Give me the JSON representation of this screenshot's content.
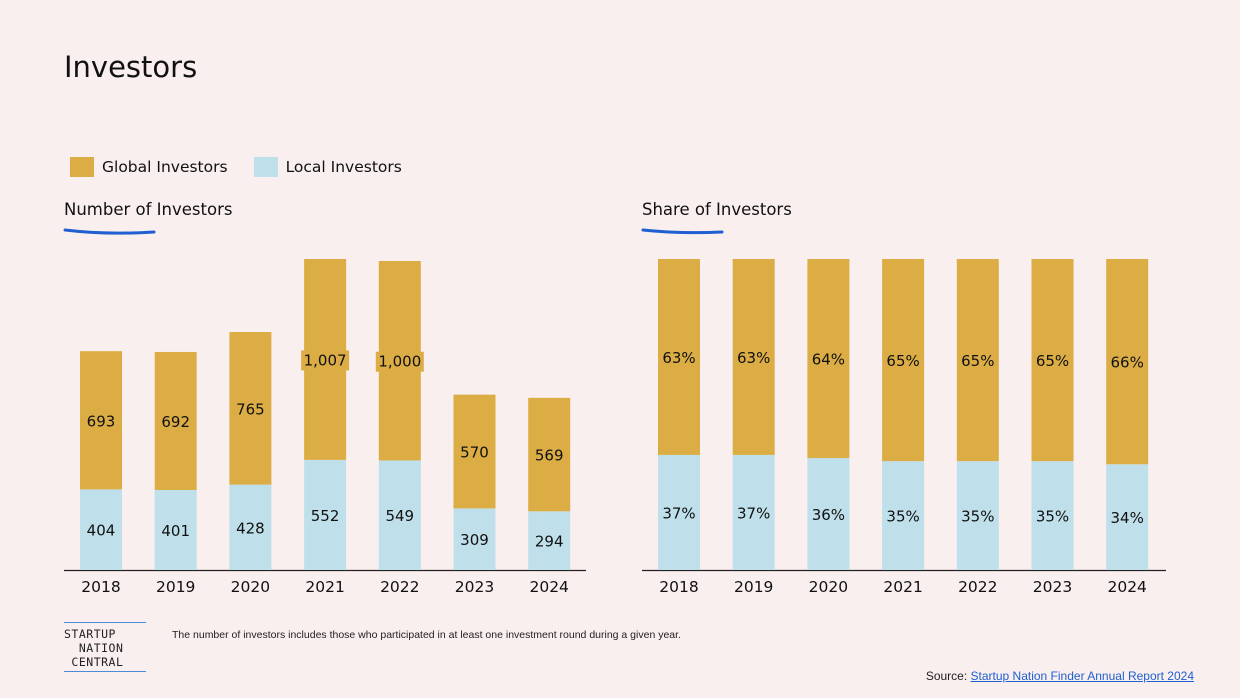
{
  "page": {
    "title": "Investors",
    "footnote": "The number of investors includes those who participated in at least one investment round during a given year.",
    "source_label": "Source:",
    "source_link": "Startup Nation Finder Annual Report 2024",
    "logo_lines": [
      "STARTUP",
      "  NATION",
      " CENTRAL"
    ]
  },
  "legend": {
    "global_label": "Global Investors",
    "local_label": "Local Investors"
  },
  "colors": {
    "global": "#dcad45",
    "local": "#bfe0ea",
    "accent_blue": "#1f5fd1",
    "axis": "#222222"
  },
  "chart_data": [
    {
      "type": "bar",
      "title": "Number of Investors",
      "stacked": true,
      "categories": [
        "2018",
        "2019",
        "2020",
        "2021",
        "2022",
        "2023",
        "2024"
      ],
      "series": [
        {
          "name": "Local Investors",
          "values": [
            404,
            401,
            428,
            552,
            549,
            309,
            294
          ],
          "labels": [
            "404",
            "401",
            "428",
            "552",
            "549",
            "309",
            "294"
          ]
        },
        {
          "name": "Global Investors",
          "values": [
            693,
            692,
            765,
            1007,
            1000,
            570,
            569
          ],
          "labels": [
            "693",
            "692",
            "765",
            "1,007",
            "1,000",
            "570",
            "569"
          ]
        }
      ],
      "ylim": [
        0,
        1559
      ],
      "grid": false
    },
    {
      "type": "bar",
      "title": "Share of Investors",
      "stacked": true,
      "categories": [
        "2018",
        "2019",
        "2020",
        "2021",
        "2022",
        "2023",
        "2024"
      ],
      "series": [
        {
          "name": "Local Investors",
          "values": [
            37,
            37,
            36,
            35,
            35,
            35,
            34
          ],
          "labels": [
            "37%",
            "37%",
            "36%",
            "35%",
            "35%",
            "35%",
            "34%"
          ]
        },
        {
          "name": "Global Investors",
          "values": [
            63,
            63,
            64,
            65,
            65,
            65,
            66
          ],
          "labels": [
            "63%",
            "63%",
            "64%",
            "65%",
            "65%",
            "65%",
            "66%"
          ]
        }
      ],
      "ylim": [
        0,
        100
      ],
      "grid": false
    }
  ]
}
